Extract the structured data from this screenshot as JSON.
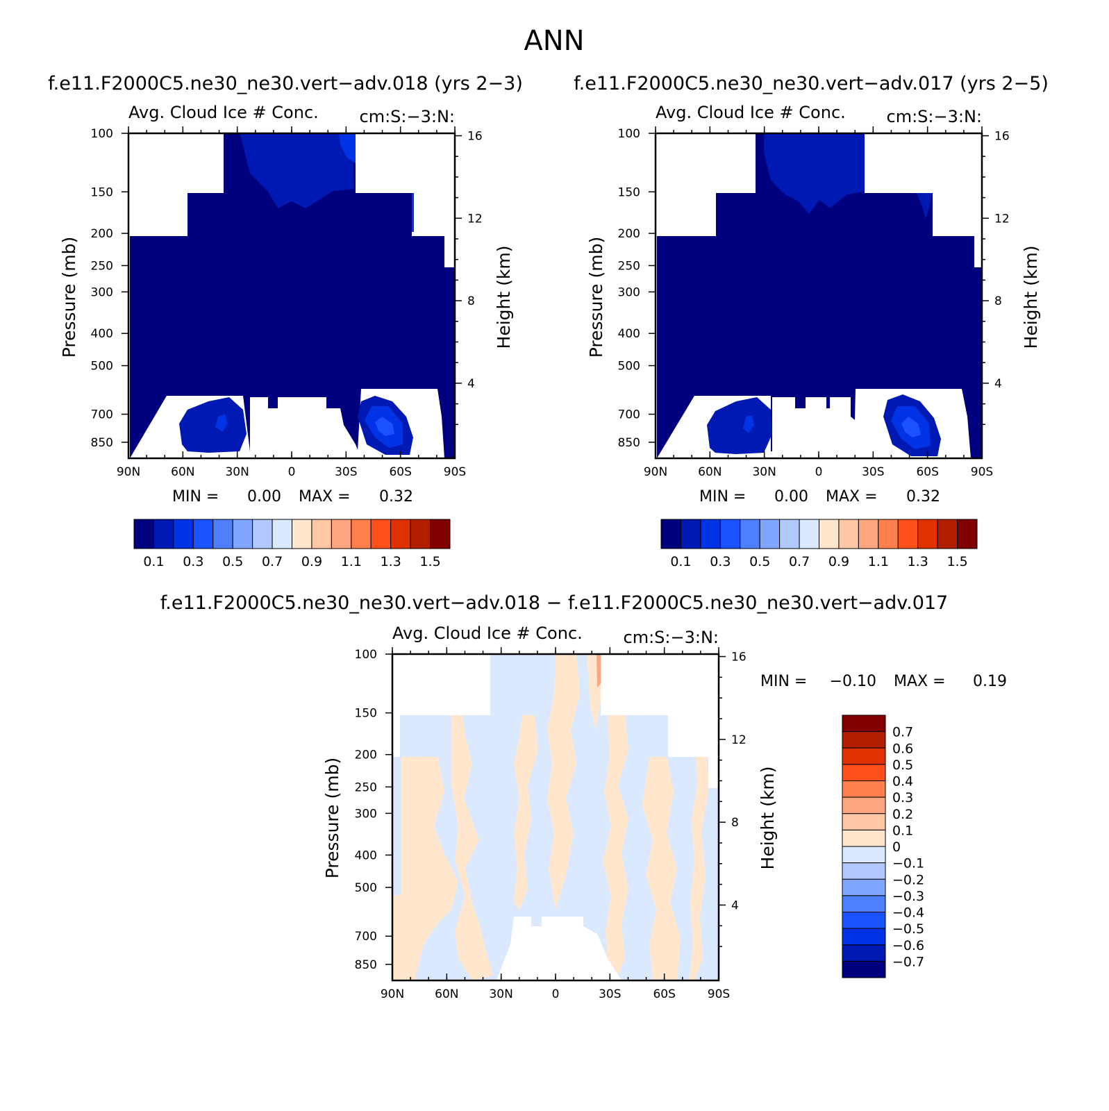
{
  "figure_title": "ANN",
  "chart_data": [
    {
      "type": "heatmap",
      "case_title": "f.e11.F2000C5.ne30_ne30.vert−adv.018 (yrs 2−3)",
      "title": "Avg. Cloud Ice # Conc.",
      "units": "cm:S:−3:N:",
      "xlabel": "",
      "ylabel": "Pressure (mb)",
      "y2label": "Height (km)",
      "x_ticks": [
        "90N",
        "60N",
        "30N",
        "0",
        "30S",
        "60S",
        "90S"
      ],
      "y_ticks": [
        100,
        150,
        200,
        250,
        300,
        400,
        500,
        700,
        850
      ],
      "y2_ticks": [
        16,
        12,
        8,
        4
      ],
      "ylim": [
        100,
        950
      ],
      "y_scale": "log",
      "min_label": "MIN =",
      "min_value": "0.00",
      "max_label": "MAX =",
      "max_value": "0.32",
      "colorbar_labels": [
        "0.1",
        "0.3",
        "0.5",
        "0.7",
        "0.9",
        "1.1",
        "1.3",
        "1.5"
      ],
      "colorbar_colors": [
        "#00007f",
        "#0019b2",
        "#0033e6",
        "#1a52ff",
        "#4d7fff",
        "#80a6ff",
        "#b2c9ff",
        "#dbe9ff",
        "#ffe6cc",
        "#ffc7a6",
        "#ffa680",
        "#ff7f4d",
        "#ff5019",
        "#e03200",
        "#b21e00",
        "#800000"
      ],
      "description_fields": {
        "field_regions": [
          {
            "level": "0.0-0.1",
            "lat_range": [
              "90N",
              "90S"
            ],
            "p_range": [
              150,
              950
            ]
          },
          {
            "level": "0.1-0.2",
            "lat_range": [
              "40N",
              "25S"
            ],
            "p_range": [
              100,
              160
            ]
          },
          {
            "level": "0.1-0.2",
            "lat_range": [
              "60N",
              "40N"
            ],
            "p_range": [
              620,
              880
            ]
          },
          {
            "level": "0.1-0.3",
            "lat_range": [
              "30S",
              "60S"
            ],
            "p_range": [
              620,
              880
            ]
          }
        ]
      }
    },
    {
      "type": "heatmap",
      "case_title": "f.e11.F2000C5.ne30_ne30.vert−adv.017 (yrs 2−5)",
      "title": "Avg. Cloud Ice # Conc.",
      "units": "cm:S:−3:N:",
      "xlabel": "",
      "ylabel": "Pressure (mb)",
      "y2label": "Height (km)",
      "x_ticks": [
        "90N",
        "60N",
        "30N",
        "0",
        "30S",
        "60S",
        "90S"
      ],
      "y_ticks": [
        100,
        150,
        200,
        250,
        300,
        400,
        500,
        700,
        850
      ],
      "y2_ticks": [
        16,
        12,
        8,
        4
      ],
      "ylim": [
        100,
        950
      ],
      "y_scale": "log",
      "min_label": "MIN =",
      "min_value": "0.00",
      "max_label": "MAX =",
      "max_value": "0.32",
      "colorbar_labels": [
        "0.1",
        "0.3",
        "0.5",
        "0.7",
        "0.9",
        "1.1",
        "1.3",
        "1.5"
      ],
      "colorbar_colors": [
        "#00007f",
        "#0019b2",
        "#0033e6",
        "#1a52ff",
        "#4d7fff",
        "#80a6ff",
        "#b2c9ff",
        "#dbe9ff",
        "#ffe6cc",
        "#ffc7a6",
        "#ffa680",
        "#ff7f4d",
        "#ff5019",
        "#e03200",
        "#b21e00",
        "#800000"
      ]
    },
    {
      "type": "heatmap",
      "case_title": "f.e11.F2000C5.ne30_ne30.vert−adv.018 − f.e11.F2000C5.ne30_ne30.vert−adv.017",
      "title": "Avg. Cloud Ice # Conc.",
      "units": "cm:S:−3:N:",
      "xlabel": "",
      "ylabel": "Pressure (mb)",
      "y2label": "Height (km)",
      "x_ticks": [
        "90N",
        "60N",
        "30N",
        "0",
        "30S",
        "60S",
        "90S"
      ],
      "y_ticks": [
        100,
        150,
        200,
        250,
        300,
        400,
        500,
        700,
        850
      ],
      "y2_ticks": [
        16,
        12,
        8,
        4
      ],
      "ylim": [
        100,
        950
      ],
      "y_scale": "log",
      "min_label": "MIN =",
      "min_value": "−0.10",
      "max_label": "MAX =",
      "max_value": "0.19",
      "colorbar_labels": [
        "0.7",
        "0.6",
        "0.5",
        "0.4",
        "0.3",
        "0.2",
        "0.1",
        "0",
        "−0.1",
        "−0.2",
        "−0.3",
        "−0.4",
        "−0.5",
        "−0.6",
        "−0.7"
      ],
      "colorbar_colors": [
        "#800000",
        "#b21e00",
        "#e03200",
        "#ff5019",
        "#ff7f4d",
        "#ffa680",
        "#ffc7a6",
        "#ffe6cc",
        "#dbe9ff",
        "#b2c9ff",
        "#80a6ff",
        "#4d7fff",
        "#1a52ff",
        "#0033e6",
        "#0019b2",
        "#00007f"
      ]
    }
  ]
}
